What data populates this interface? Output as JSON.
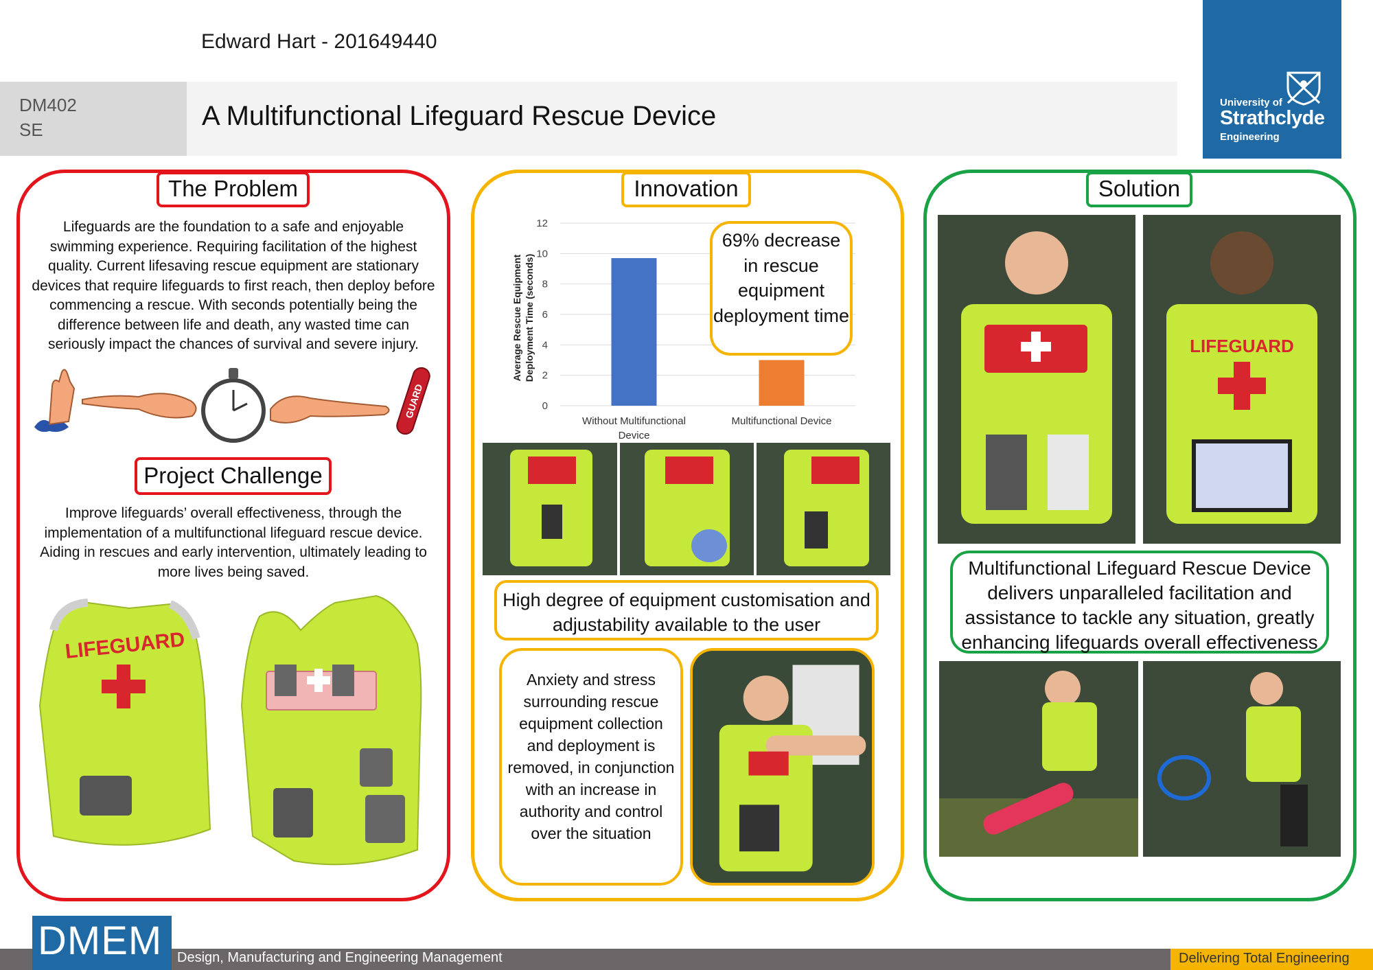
{
  "header": {
    "author": "Edward Hart - 201649440",
    "course_line1": "DM402",
    "course_line2": "SE",
    "title": "A Multifunctional Lifeguard Rescue Device"
  },
  "logo": {
    "line1": "University of",
    "line2": "Strathclyde",
    "line3": "Engineering"
  },
  "problem": {
    "heading": "The Problem",
    "text": "Lifeguards are the foundation to a safe and enjoyable swimming experience. Requiring facilitation of the highest quality. Current lifesaving rescue equipment are stationary devices that require lifeguards to first reach, then deploy before commencing a rescue. With seconds potentially being the difference between life and death, any wasted time can seriously impact the chances of survival and severe injury.",
    "tube_label": "GUARD"
  },
  "challenge": {
    "heading": "Project Challenge",
    "text": "Improve lifeguards’ overall effectiveness, through the implementation of a multifunctional lifeguard rescue device. Aiding in rescues and early intervention, ultimately leading to more lives being saved.",
    "vest_label": "LIFEGUARD"
  },
  "innovation": {
    "heading": "Innovation",
    "stat_callout": "69% decrease in rescue equipment deployment time",
    "customisation": "High degree of equipment customisation and adjustability available to the user",
    "anxiety": "Anxiety and stress surrounding rescue equipment collection and deployment is removed, in conjunction with an increase in authority and control over the situation"
  },
  "solution": {
    "heading": "Solution",
    "summary": "Multifunctional Lifeguard Rescue Device delivers unparalleled facilitation and assistance to tackle any situation, greatly enhancing lifeguards overall effectiveness",
    "vest_label": "LIFEGUARD"
  },
  "chart_data": {
    "type": "bar",
    "categories": [
      "Without Multifunctional Device",
      "Multifunctional Device"
    ],
    "values": [
      9.7,
      3.0
    ],
    "colors": [
      "#4472c4",
      "#ed7d31"
    ],
    "title": "",
    "xlabel": "",
    "ylabel": "Average Rescue Equipment Deployment Time (seconds)",
    "ylim": [
      0,
      12
    ],
    "yticks": [
      0,
      2,
      4,
      6,
      8,
      10,
      12
    ],
    "grid": true
  },
  "footer": {
    "dmem": "DMEM",
    "department": "Design, Manufacturing and Engineering Management",
    "tagline": "Delivering Total Engineering"
  },
  "colors": {
    "problem": "#e3141c",
    "innovation": "#f5b400",
    "solution": "#19a346",
    "brand_blue": "#1f6aa5",
    "vest": "#c6e83a"
  }
}
